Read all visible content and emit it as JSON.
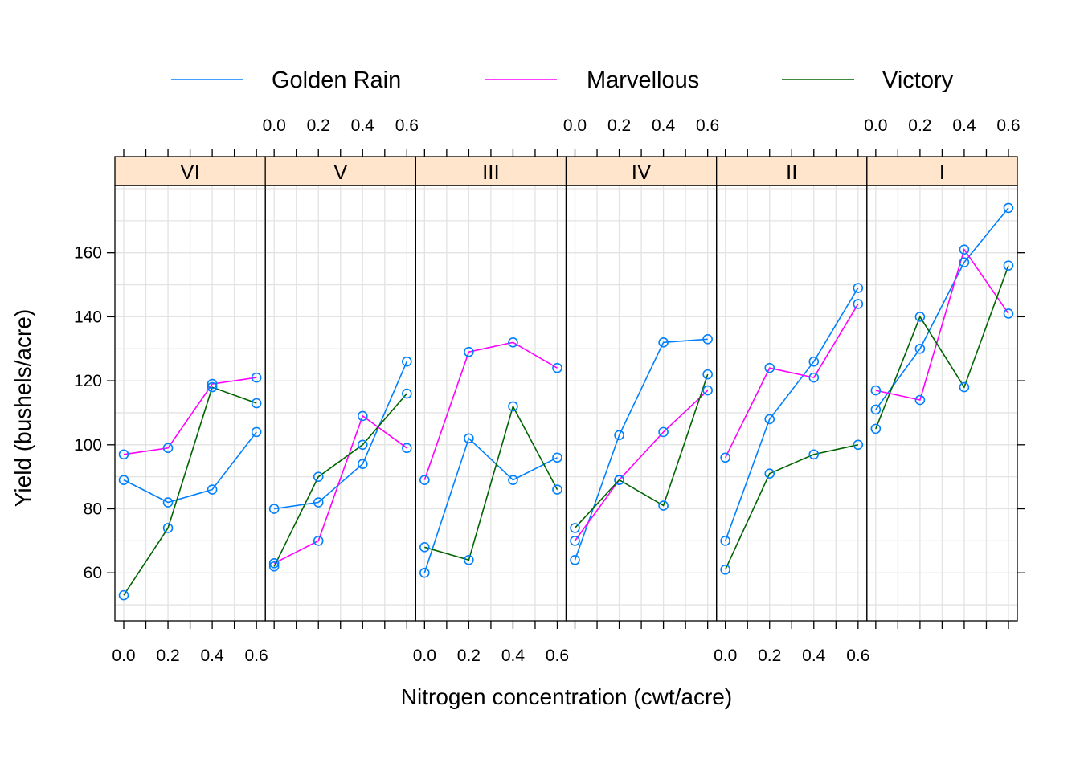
{
  "chart_data": {
    "type": "line",
    "xlabel": "Nitrogen concentration (cwt/acre)",
    "ylabel": "Yield (bushels/acre)",
    "x": [
      0.0,
      0.2,
      0.4,
      0.6
    ],
    "x_ticks": [
      "0.0",
      "0.2",
      "0.4",
      "0.6"
    ],
    "xlim": [
      -0.04,
      0.64
    ],
    "y_ticks": [
      60,
      80,
      100,
      120,
      140,
      160
    ],
    "ylim": [
      45,
      181
    ],
    "grid": true,
    "markers": "open-circle",
    "marker_color": "#0080ff",
    "strip_color": "#ffe5cc",
    "legend_position": "top",
    "legend": [
      {
        "name": "Golden Rain",
        "color": "#0080ff"
      },
      {
        "name": "Marvellous",
        "color": "#ff00ff"
      },
      {
        "name": "Victory",
        "color": "#006400"
      }
    ],
    "panels": [
      {
        "block": "VI",
        "series": {
          "Golden Rain": [
            89,
            82,
            86,
            104
          ],
          "Marvellous": [
            97,
            99,
            119,
            121
          ],
          "Victory": [
            53,
            74,
            118,
            113
          ]
        }
      },
      {
        "block": "V",
        "series": {
          "Golden Rain": [
            80,
            82,
            94,
            126
          ],
          "Marvellous": [
            63,
            70,
            109,
            99
          ],
          "Victory": [
            62,
            90,
            100,
            116
          ]
        }
      },
      {
        "block": "III",
        "series": {
          "Golden Rain": [
            60,
            102,
            89,
            96
          ],
          "Marvellous": [
            89,
            129,
            132,
            124
          ],
          "Victory": [
            68,
            64,
            112,
            86
          ]
        }
      },
      {
        "block": "IV",
        "series": {
          "Golden Rain": [
            64,
            103,
            132,
            133
          ],
          "Marvellous": [
            70,
            89,
            104,
            117
          ],
          "Victory": [
            74,
            89,
            81,
            122
          ]
        }
      },
      {
        "block": "II",
        "series": {
          "Golden Rain": [
            70,
            108,
            126,
            149
          ],
          "Marvellous": [
            96,
            124,
            121,
            144
          ],
          "Victory": [
            61,
            91,
            97,
            100
          ]
        }
      },
      {
        "block": "I",
        "series": {
          "Golden Rain": [
            111,
            130,
            157,
            174
          ],
          "Marvellous": [
            117,
            114,
            161,
            141
          ],
          "Victory": [
            105,
            140,
            118,
            156
          ]
        }
      }
    ]
  }
}
